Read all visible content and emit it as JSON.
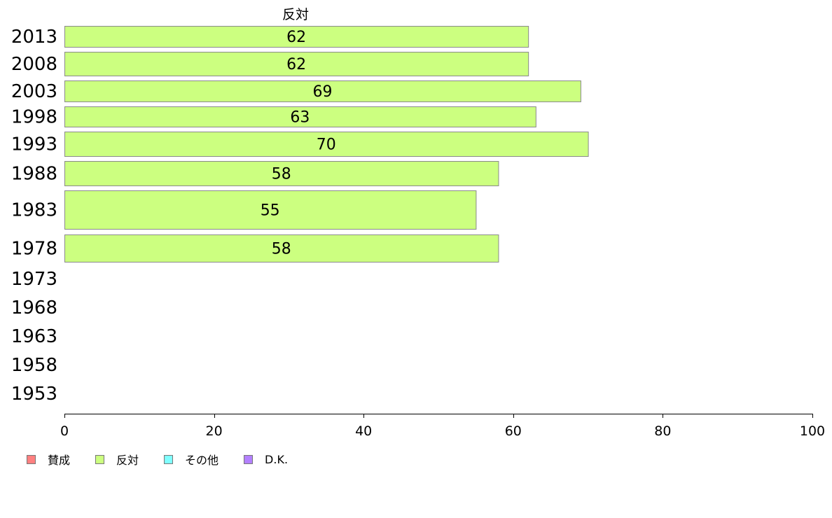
{
  "chart_data": {
    "type": "bar",
    "orientation": "horizontal",
    "title": "反対",
    "xlim": [
      0,
      100
    ],
    "xticks": [
      0,
      20,
      40,
      60,
      80,
      100
    ],
    "categories": [
      "2013",
      "2008",
      "2003",
      "1998",
      "1993",
      "1988",
      "1983",
      "1978",
      "1973",
      "1968",
      "1963",
      "1958",
      "1953"
    ],
    "series": [
      {
        "name": "反対",
        "color": "#ccff80",
        "values": [
          62,
          62,
          69,
          63,
          70,
          58,
          55,
          58,
          null,
          null,
          null,
          null,
          null
        ]
      }
    ],
    "data_labels": [
      "62",
      "62",
      "69",
      "63",
      "70",
      "58",
      "55",
      "58",
      "",
      "",
      "",
      "",
      ""
    ],
    "grid": false,
    "legend_position": "bottom-left"
  },
  "legend": [
    {
      "label": "賛成",
      "color": "#ff8080"
    },
    {
      "label": "反対",
      "color": "#ccff80"
    },
    {
      "label": "その他",
      "color": "#80ffff"
    },
    {
      "label": "D.K.",
      "color": "#b380ff"
    }
  ]
}
